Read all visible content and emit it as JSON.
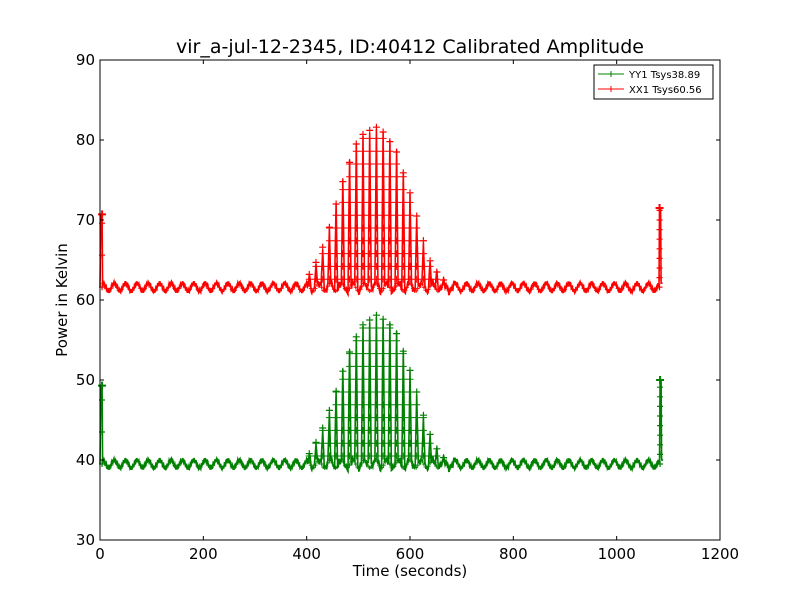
{
  "chart_data": {
    "type": "line",
    "title": "vir_a-jul-12-2345, ID:40412 Calibrated Amplitude",
    "xlabel": "Time (seconds)",
    "ylabel": "Power in Kelvin",
    "xlim": [
      0,
      1200
    ],
    "ylim": [
      30,
      90
    ],
    "xticks": [
      "0",
      "200",
      "400",
      "600",
      "800",
      "1000",
      "1200"
    ],
    "yticks": [
      "30",
      "40",
      "50",
      "60",
      "70",
      "80",
      "90"
    ],
    "grid": false,
    "legend_position": "top-right",
    "marker": "+",
    "series": [
      {
        "name": "YY1 Tsys38.89",
        "color": "#008000",
        "baseline": 39.5,
        "baseline_ripple": 0.5,
        "start_spike": {
          "x": 4,
          "y": 49.3
        },
        "end_spike": {
          "x": 1084,
          "y": 50.0
        },
        "end_value": 40.0,
        "peaks": [
          {
            "x": 405,
            "y": 40.8
          },
          {
            "x": 418,
            "y": 42.2
          },
          {
            "x": 431,
            "y": 44.0
          },
          {
            "x": 444,
            "y": 46.2
          },
          {
            "x": 457,
            "y": 48.6
          },
          {
            "x": 470,
            "y": 51.1
          },
          {
            "x": 483,
            "y": 53.5
          },
          {
            "x": 496,
            "y": 55.4
          },
          {
            "x": 509,
            "y": 56.9
          },
          {
            "x": 522,
            "y": 57.5
          },
          {
            "x": 535,
            "y": 58.1
          },
          {
            "x": 548,
            "y": 57.6
          },
          {
            "x": 561,
            "y": 56.9
          },
          {
            "x": 574,
            "y": 55.8
          },
          {
            "x": 587,
            "y": 53.6
          },
          {
            "x": 600,
            "y": 51.2
          },
          {
            "x": 613,
            "y": 48.5
          },
          {
            "x": 626,
            "y": 45.6
          },
          {
            "x": 639,
            "y": 43.2
          },
          {
            "x": 652,
            "y": 41.4
          },
          {
            "x": 665,
            "y": 40.3
          }
        ]
      },
      {
        "name": "XX1 Tsys60.56",
        "color": "#ff0000",
        "baseline": 61.6,
        "baseline_ripple": 0.5,
        "start_spike": {
          "x": 4,
          "y": 70.7
        },
        "end_spike": {
          "x": 1083,
          "y": 71.5
        },
        "end_value": 62.1,
        "peaks": [
          {
            "x": 405,
            "y": 63.2
          },
          {
            "x": 418,
            "y": 64.7
          },
          {
            "x": 431,
            "y": 66.6
          },
          {
            "x": 444,
            "y": 69.1
          },
          {
            "x": 457,
            "y": 72.0
          },
          {
            "x": 470,
            "y": 74.8
          },
          {
            "x": 483,
            "y": 77.2
          },
          {
            "x": 496,
            "y": 79.5
          },
          {
            "x": 509,
            "y": 80.7
          },
          {
            "x": 522,
            "y": 81.2
          },
          {
            "x": 535,
            "y": 81.6
          },
          {
            "x": 548,
            "y": 81.0
          },
          {
            "x": 561,
            "y": 79.8
          },
          {
            "x": 574,
            "y": 78.5
          },
          {
            "x": 587,
            "y": 75.9
          },
          {
            "x": 600,
            "y": 73.4
          },
          {
            "x": 613,
            "y": 70.5
          },
          {
            "x": 626,
            "y": 67.4
          },
          {
            "x": 639,
            "y": 64.9
          },
          {
            "x": 652,
            "y": 63.5
          },
          {
            "x": 665,
            "y": 62.5
          }
        ]
      }
    ]
  }
}
